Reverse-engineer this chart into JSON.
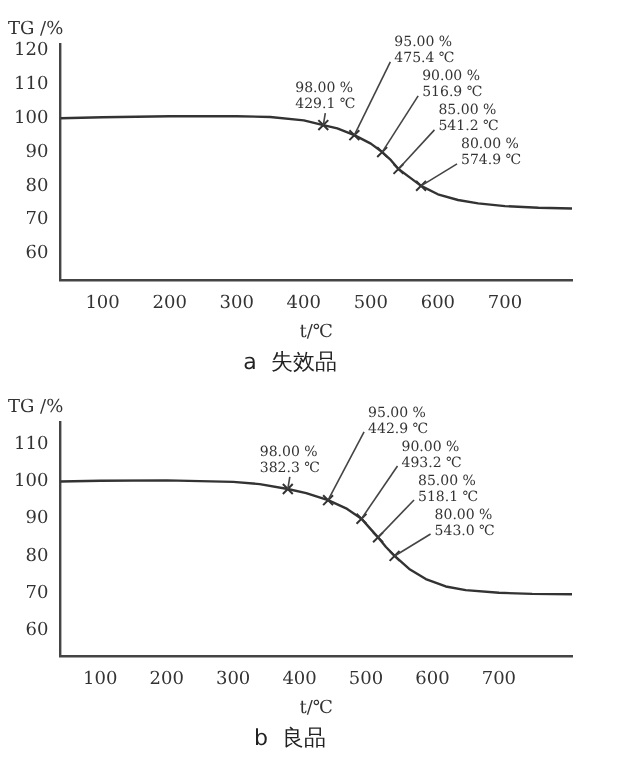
{
  "chart_data": [
    {
      "type": "line",
      "title": "a  失效品",
      "xlabel": "t/℃",
      "ylabel": "TG /%",
      "xlim": [
        37,
        800
      ],
      "xticks": [
        100,
        200,
        300,
        400,
        500,
        600,
        700
      ],
      "ylim": [
        52,
        122
      ],
      "yticks": [
        60,
        70,
        80,
        90,
        100,
        110,
        120
      ],
      "series": [
        {
          "type": "line",
          "color": "#333333",
          "x": [
            37,
            100,
            200,
            300,
            350,
            400,
            429.1,
            450,
            475.4,
            500,
            516.9,
            530,
            541.2,
            560,
            574.9,
            600,
            630,
            660,
            700,
            750,
            800
          ],
          "values": [
            100,
            100.3,
            100.6,
            100.6,
            100.4,
            99.4,
            98,
            97,
            95,
            92.5,
            90,
            87.6,
            85,
            82.2,
            80,
            77.5,
            75.8,
            74.8,
            74,
            73.5,
            73.3
          ]
        },
        {
          "type": "scatter",
          "marker": "cross",
          "color": "#333333",
          "x": [
            429.1,
            475.4,
            516.9,
            541.2,
            574.9
          ],
          "values": [
            98,
            95,
            90,
            85,
            80
          ]
        }
      ],
      "annotations": [
        {
          "text": "98.00 %\n429.1 ℃",
          "x": 429.1,
          "y": 98
        },
        {
          "text": "95.00 %\n475.4 ℃",
          "x": 475.4,
          "y": 95
        },
        {
          "text": "90.00 %\n516.9 ℃",
          "x": 516.9,
          "y": 90
        },
        {
          "text": "85.00 %\n541.2 ℃",
          "x": 541.2,
          "y": 85
        },
        {
          "text": "80.00 %\n574.9 ℃",
          "x": 574.9,
          "y": 80
        }
      ]
    },
    {
      "type": "line",
      "title": "b  良品",
      "xlabel": "t/℃",
      "ylabel": "TG /%",
      "xlim": [
        40,
        810
      ],
      "xticks": [
        100,
        200,
        300,
        400,
        500,
        600,
        700
      ],
      "ylim": [
        53,
        116
      ],
      "yticks": [
        60,
        70,
        80,
        90,
        100,
        110
      ],
      "series": [
        {
          "type": "line",
          "color": "#333333",
          "x": [
            40,
            100,
            200,
            300,
            340,
            382.3,
            410,
            442.9,
            470,
            493.2,
            505,
            518.1,
            530,
            543,
            565,
            590,
            620,
            650,
            700,
            750,
            810
          ],
          "values": [
            100,
            100.2,
            100.3,
            99.9,
            99.3,
            98,
            96.9,
            95,
            92.8,
            90,
            87.6,
            85,
            82.4,
            80,
            76.5,
            73.8,
            71.8,
            70.8,
            70.1,
            69.8,
            69.7
          ]
        },
        {
          "type": "scatter",
          "marker": "cross",
          "color": "#333333",
          "x": [
            382.3,
            442.9,
            493.2,
            518.1,
            543
          ],
          "values": [
            98,
            95,
            90,
            85,
            80
          ]
        }
      ],
      "annotations": [
        {
          "text": "98.00 %\n382.3 ℃",
          "x": 382.3,
          "y": 98
        },
        {
          "text": "95.00 %\n442.9 ℃",
          "x": 442.9,
          "y": 95
        },
        {
          "text": "90.00 %\n493.2 ℃",
          "x": 493.2,
          "y": 90
        },
        {
          "text": "85.00 %\n518.1 ℃",
          "x": 518.1,
          "y": 85
        },
        {
          "text": "80.00 %\n543.0 ℃",
          "x": 543,
          "y": 80
        }
      ]
    }
  ]
}
